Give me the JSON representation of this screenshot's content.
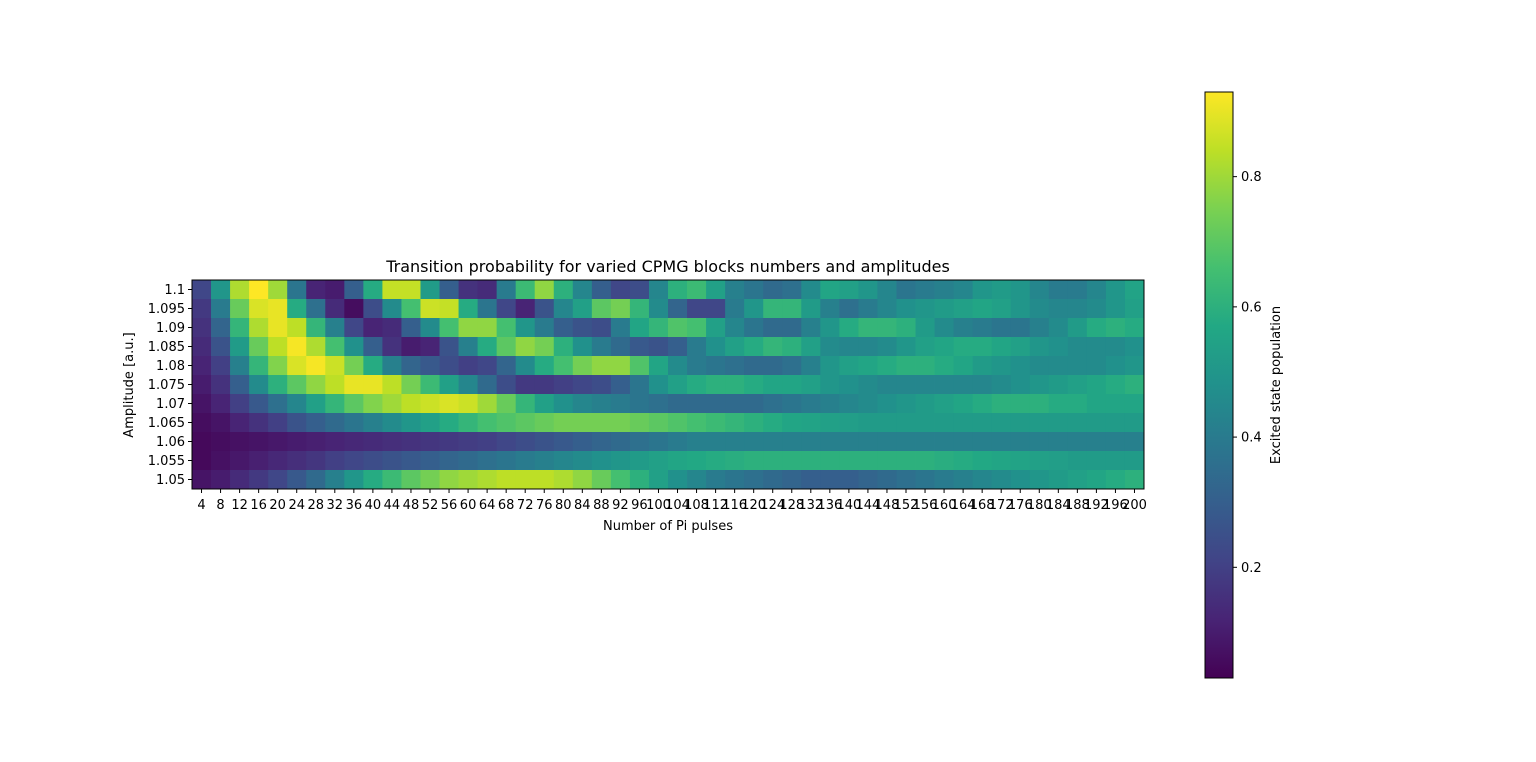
{
  "chart_data": {
    "type": "heatmap",
    "title": "Transition probability for varied CPMG blocks numbers and amplitudes",
    "xlabel": "Number of Pi pulses",
    "ylabel": "Amplitude [a.u.]",
    "colorbar_label": "Excited state population",
    "colormap": "viridis",
    "vmin": 0.03,
    "vmax": 0.93,
    "colorbar_ticks": [
      0.2,
      0.4,
      0.6,
      0.8
    ],
    "colorbar_tick_labels": [
      "0.2",
      "0.4",
      "0.6",
      "0.8"
    ],
    "x": [
      4,
      8,
      12,
      16,
      20,
      24,
      28,
      32,
      36,
      40,
      44,
      48,
      52,
      56,
      60,
      64,
      68,
      72,
      76,
      80,
      84,
      88,
      92,
      96,
      100,
      104,
      108,
      112,
      116,
      120,
      124,
      128,
      132,
      136,
      140,
      144,
      148,
      152,
      156,
      160,
      164,
      168,
      172,
      176,
      180,
      184,
      188,
      192,
      196,
      200
    ],
    "x_tick_labels": [
      "4",
      "8",
      "12",
      "16",
      "20",
      "24",
      "28",
      "32",
      "36",
      "40",
      "44",
      "48",
      "52",
      "56",
      "60",
      "64",
      "68",
      "72",
      "76",
      "80",
      "84",
      "88",
      "92",
      "96",
      "100",
      "104",
      "108",
      "112",
      "116",
      "120",
      "124",
      "128",
      "132",
      "136",
      "140",
      "144",
      "148",
      "152",
      "156",
      "160",
      "164",
      "168",
      "172",
      "176",
      "180",
      "184",
      "188",
      "192",
      "196",
      "200"
    ],
    "y": [
      1.1,
      1.095,
      1.09,
      1.085,
      1.08,
      1.075,
      1.07,
      1.065,
      1.06,
      1.055,
      1.05
    ],
    "y_tick_labels": [
      "1.1",
      "1.095",
      "1.09",
      "1.085",
      "1.08",
      "1.075",
      "1.07",
      "1.065",
      "1.06",
      "1.055",
      "1.05"
    ],
    "values": [
      [
        0.22,
        0.5,
        0.82,
        0.93,
        0.8,
        0.38,
        0.12,
        0.1,
        0.3,
        0.58,
        0.85,
        0.85,
        0.52,
        0.3,
        0.16,
        0.14,
        0.4,
        0.64,
        0.78,
        0.6,
        0.44,
        0.3,
        0.22,
        0.24,
        0.44,
        0.6,
        0.64,
        0.54,
        0.42,
        0.38,
        0.34,
        0.36,
        0.46,
        0.56,
        0.54,
        0.5,
        0.44,
        0.38,
        0.4,
        0.42,
        0.44,
        0.5,
        0.52,
        0.5,
        0.44,
        0.4,
        0.4,
        0.44,
        0.5,
        0.55
      ],
      [
        0.18,
        0.4,
        0.72,
        0.88,
        0.9,
        0.58,
        0.36,
        0.14,
        0.06,
        0.24,
        0.46,
        0.66,
        0.86,
        0.85,
        0.58,
        0.38,
        0.22,
        0.12,
        0.26,
        0.44,
        0.54,
        0.7,
        0.74,
        0.62,
        0.46,
        0.32,
        0.22,
        0.22,
        0.4,
        0.5,
        0.62,
        0.62,
        0.52,
        0.42,
        0.36,
        0.4,
        0.44,
        0.48,
        0.5,
        0.52,
        0.54,
        0.56,
        0.54,
        0.5,
        0.46,
        0.44,
        0.44,
        0.46,
        0.5,
        0.54
      ],
      [
        0.16,
        0.32,
        0.62,
        0.82,
        0.9,
        0.84,
        0.62,
        0.42,
        0.22,
        0.12,
        0.14,
        0.3,
        0.46,
        0.66,
        0.78,
        0.78,
        0.66,
        0.5,
        0.4,
        0.3,
        0.26,
        0.24,
        0.4,
        0.56,
        0.62,
        0.68,
        0.66,
        0.54,
        0.44,
        0.38,
        0.34,
        0.34,
        0.42,
        0.5,
        0.58,
        0.62,
        0.62,
        0.6,
        0.52,
        0.46,
        0.42,
        0.4,
        0.38,
        0.38,
        0.42,
        0.46,
        0.52,
        0.58,
        0.6,
        0.58
      ],
      [
        0.14,
        0.26,
        0.52,
        0.72,
        0.84,
        0.92,
        0.82,
        0.66,
        0.48,
        0.3,
        0.16,
        0.1,
        0.12,
        0.26,
        0.42,
        0.58,
        0.7,
        0.78,
        0.74,
        0.6,
        0.48,
        0.4,
        0.34,
        0.28,
        0.26,
        0.3,
        0.4,
        0.48,
        0.54,
        0.58,
        0.62,
        0.6,
        0.54,
        0.46,
        0.44,
        0.44,
        0.46,
        0.5,
        0.54,
        0.56,
        0.58,
        0.58,
        0.56,
        0.54,
        0.5,
        0.48,
        0.46,
        0.46,
        0.46,
        0.48
      ],
      [
        0.12,
        0.2,
        0.42,
        0.62,
        0.76,
        0.88,
        0.92,
        0.86,
        0.74,
        0.58,
        0.42,
        0.32,
        0.28,
        0.24,
        0.2,
        0.22,
        0.32,
        0.46,
        0.58,
        0.66,
        0.74,
        0.78,
        0.78,
        0.68,
        0.56,
        0.46,
        0.4,
        0.38,
        0.36,
        0.34,
        0.34,
        0.36,
        0.42,
        0.5,
        0.54,
        0.56,
        0.58,
        0.6,
        0.6,
        0.58,
        0.56,
        0.52,
        0.5,
        0.48,
        0.46,
        0.46,
        0.46,
        0.46,
        0.48,
        0.5
      ],
      [
        0.1,
        0.16,
        0.3,
        0.46,
        0.6,
        0.7,
        0.78,
        0.84,
        0.9,
        0.9,
        0.84,
        0.74,
        0.64,
        0.54,
        0.44,
        0.34,
        0.24,
        0.18,
        0.18,
        0.2,
        0.22,
        0.24,
        0.3,
        0.38,
        0.48,
        0.54,
        0.58,
        0.6,
        0.6,
        0.58,
        0.56,
        0.56,
        0.54,
        0.5,
        0.48,
        0.46,
        0.44,
        0.44,
        0.44,
        0.44,
        0.44,
        0.44,
        0.46,
        0.48,
        0.5,
        0.52,
        0.54,
        0.56,
        0.58,
        0.6
      ],
      [
        0.08,
        0.12,
        0.2,
        0.28,
        0.36,
        0.44,
        0.54,
        0.62,
        0.7,
        0.76,
        0.8,
        0.84,
        0.86,
        0.88,
        0.86,
        0.8,
        0.72,
        0.62,
        0.54,
        0.48,
        0.44,
        0.42,
        0.4,
        0.38,
        0.36,
        0.34,
        0.34,
        0.34,
        0.34,
        0.34,
        0.36,
        0.38,
        0.4,
        0.42,
        0.44,
        0.46,
        0.48,
        0.5,
        0.52,
        0.54,
        0.56,
        0.58,
        0.6,
        0.6,
        0.6,
        0.58,
        0.58,
        0.56,
        0.56,
        0.56
      ],
      [
        0.06,
        0.08,
        0.12,
        0.16,
        0.2,
        0.26,
        0.3,
        0.34,
        0.38,
        0.42,
        0.46,
        0.5,
        0.54,
        0.58,
        0.62,
        0.66,
        0.68,
        0.7,
        0.72,
        0.74,
        0.74,
        0.74,
        0.74,
        0.72,
        0.7,
        0.68,
        0.66,
        0.64,
        0.62,
        0.6,
        0.58,
        0.56,
        0.55,
        0.54,
        0.53,
        0.52,
        0.52,
        0.52,
        0.52,
        0.52,
        0.52,
        0.52,
        0.52,
        0.52,
        0.52,
        0.52,
        0.52,
        0.52,
        0.52,
        0.52
      ],
      [
        0.05,
        0.06,
        0.07,
        0.08,
        0.09,
        0.1,
        0.11,
        0.12,
        0.13,
        0.14,
        0.15,
        0.16,
        0.17,
        0.18,
        0.19,
        0.2,
        0.22,
        0.24,
        0.26,
        0.28,
        0.3,
        0.32,
        0.34,
        0.36,
        0.38,
        0.4,
        0.42,
        0.42,
        0.42,
        0.42,
        0.42,
        0.42,
        0.42,
        0.42,
        0.42,
        0.42,
        0.42,
        0.42,
        0.42,
        0.42,
        0.42,
        0.42,
        0.42,
        0.42,
        0.42,
        0.42,
        0.42,
        0.42,
        0.42,
        0.42
      ],
      [
        0.05,
        0.07,
        0.09,
        0.11,
        0.13,
        0.15,
        0.17,
        0.2,
        0.22,
        0.24,
        0.26,
        0.28,
        0.3,
        0.32,
        0.34,
        0.36,
        0.38,
        0.4,
        0.42,
        0.44,
        0.46,
        0.48,
        0.5,
        0.52,
        0.54,
        0.56,
        0.57,
        0.58,
        0.59,
        0.6,
        0.6,
        0.6,
        0.6,
        0.6,
        0.6,
        0.6,
        0.6,
        0.6,
        0.6,
        0.59,
        0.58,
        0.57,
        0.56,
        0.55,
        0.54,
        0.53,
        0.52,
        0.52,
        0.52,
        0.52
      ],
      [
        0.08,
        0.1,
        0.14,
        0.18,
        0.22,
        0.28,
        0.34,
        0.42,
        0.5,
        0.58,
        0.64,
        0.7,
        0.74,
        0.78,
        0.8,
        0.82,
        0.84,
        0.84,
        0.84,
        0.82,
        0.78,
        0.72,
        0.66,
        0.6,
        0.54,
        0.48,
        0.44,
        0.4,
        0.38,
        0.36,
        0.34,
        0.32,
        0.3,
        0.3,
        0.3,
        0.32,
        0.34,
        0.36,
        0.38,
        0.4,
        0.42,
        0.44,
        0.46,
        0.48,
        0.5,
        0.52,
        0.54,
        0.56,
        0.58,
        0.6
      ]
    ]
  }
}
